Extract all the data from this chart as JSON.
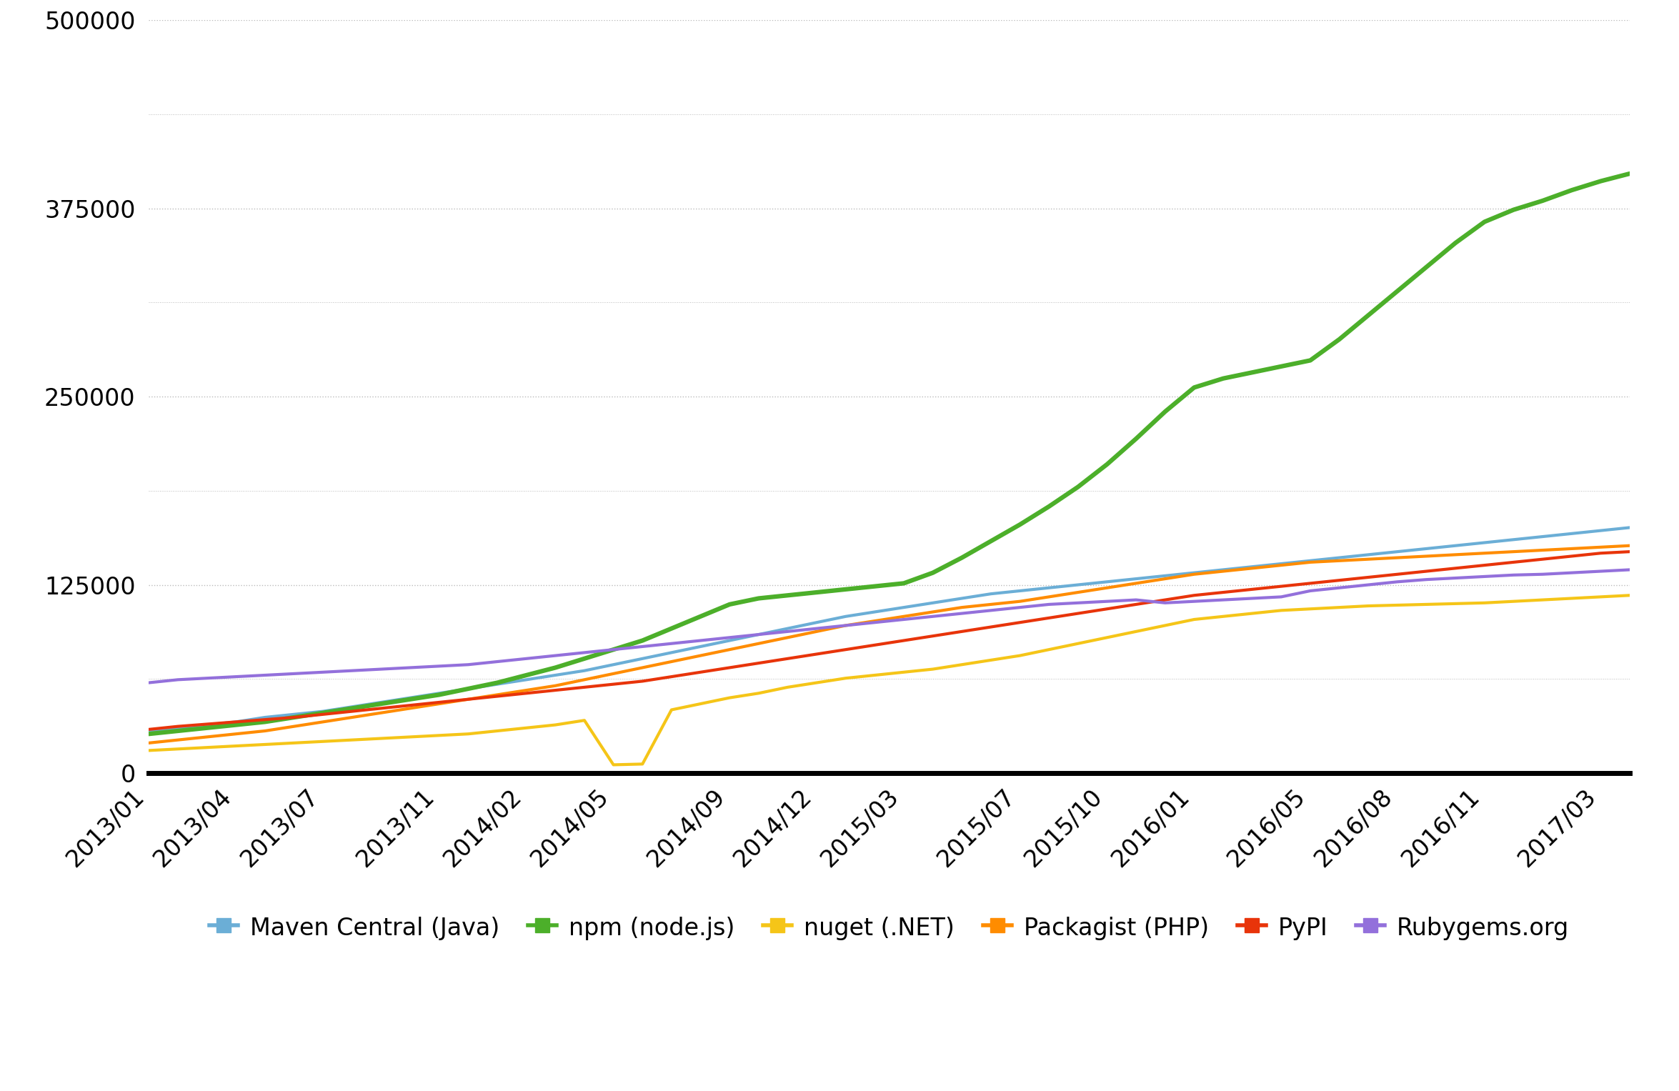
{
  "series": {
    "Maven Central (Java)": {
      "color": "#6baed6",
      "linewidth": 3.0,
      "data": {
        "2013/01": 28000,
        "2013/02": 30000,
        "2013/03": 32000,
        "2013/04": 34000,
        "2013/05": 37000,
        "2013/06": 39000,
        "2013/07": 41000,
        "2013/08": 44000,
        "2013/09": 47000,
        "2013/10": 50000,
        "2013/11": 53000,
        "2013/12": 56000,
        "2014/01": 59000,
        "2014/02": 62000,
        "2014/03": 65000,
        "2014/04": 68000,
        "2014/05": 72000,
        "2014/06": 76000,
        "2014/07": 80000,
        "2014/08": 84000,
        "2014/09": 88000,
        "2014/10": 92000,
        "2014/11": 96000,
        "2014/12": 100000,
        "2015/01": 104000,
        "2015/02": 107000,
        "2015/03": 110000,
        "2015/04": 113000,
        "2015/05": 116000,
        "2015/06": 119000,
        "2015/07": 121000,
        "2015/08": 123000,
        "2015/09": 125000,
        "2015/10": 127000,
        "2015/11": 129000,
        "2015/12": 131000,
        "2016/01": 133000,
        "2016/02": 135000,
        "2016/03": 137000,
        "2016/04": 139000,
        "2016/05": 141000,
        "2016/06": 143000,
        "2016/07": 145000,
        "2016/08": 147000,
        "2016/09": 149000,
        "2016/10": 151000,
        "2016/11": 153000,
        "2016/12": 155000,
        "2017/01": 157000,
        "2017/02": 159000,
        "2017/03": 161000,
        "2017/04": 163000
      }
    },
    "npm (node.js)": {
      "color": "#4caf2a",
      "linewidth": 4.5,
      "data": {
        "2013/01": 26000,
        "2013/02": 28000,
        "2013/03": 30000,
        "2013/04": 32000,
        "2013/05": 34000,
        "2013/06": 37000,
        "2013/07": 40000,
        "2013/08": 43000,
        "2013/09": 46000,
        "2013/10": 49000,
        "2013/11": 52000,
        "2013/12": 56000,
        "2014/01": 60000,
        "2014/02": 65000,
        "2014/03": 70000,
        "2014/04": 76000,
        "2014/05": 82000,
        "2014/06": 88000,
        "2014/07": 96000,
        "2014/08": 104000,
        "2014/09": 112000,
        "2014/10": 116000,
        "2014/11": 118000,
        "2014/12": 120000,
        "2015/01": 122000,
        "2015/02": 124000,
        "2015/03": 126000,
        "2015/04": 133000,
        "2015/05": 143000,
        "2015/06": 154000,
        "2015/07": 165000,
        "2015/08": 177000,
        "2015/09": 190000,
        "2015/10": 205000,
        "2015/11": 222000,
        "2015/12": 240000,
        "2016/01": 256000,
        "2016/02": 262000,
        "2016/03": 266000,
        "2016/04": 270000,
        "2016/05": 274000,
        "2016/06": 288000,
        "2016/07": 304000,
        "2016/08": 320000,
        "2016/09": 336000,
        "2016/10": 352000,
        "2016/11": 366000,
        "2016/12": 374000,
        "2017/01": 380000,
        "2017/02": 387000,
        "2017/03": 393000,
        "2017/04": 398000
      }
    },
    "nuget (.NET)": {
      "color": "#f5c518",
      "linewidth": 3.0,
      "data": {
        "2013/01": 15000,
        "2013/02": 16000,
        "2013/03": 17000,
        "2013/04": 18000,
        "2013/05": 19000,
        "2013/06": 20000,
        "2013/07": 21000,
        "2013/08": 22000,
        "2013/09": 23000,
        "2013/10": 24000,
        "2013/11": 25000,
        "2013/12": 26000,
        "2014/01": 28000,
        "2014/02": 30000,
        "2014/03": 32000,
        "2014/04": 35000,
        "2014/05": 5500,
        "2014/06": 6000,
        "2014/07": 42000,
        "2014/08": 46000,
        "2014/09": 50000,
        "2014/10": 53000,
        "2014/11": 57000,
        "2014/12": 60000,
        "2015/01": 63000,
        "2015/02": 65000,
        "2015/03": 67000,
        "2015/04": 69000,
        "2015/05": 72000,
        "2015/06": 75000,
        "2015/07": 78000,
        "2015/08": 82000,
        "2015/09": 86000,
        "2015/10": 90000,
        "2015/11": 94000,
        "2015/12": 98000,
        "2016/01": 102000,
        "2016/02": 104000,
        "2016/03": 106000,
        "2016/04": 108000,
        "2016/05": 109000,
        "2016/06": 110000,
        "2016/07": 111000,
        "2016/08": 111500,
        "2016/09": 112000,
        "2016/10": 112500,
        "2016/11": 113000,
        "2016/12": 114000,
        "2017/01": 115000,
        "2017/02": 116000,
        "2017/03": 117000,
        "2017/04": 118000
      }
    },
    "Packagist (PHP)": {
      "color": "#ff8c00",
      "linewidth": 3.0,
      "data": {
        "2013/01": 20000,
        "2013/02": 22000,
        "2013/03": 24000,
        "2013/04": 26000,
        "2013/05": 28000,
        "2013/06": 31000,
        "2013/07": 34000,
        "2013/08": 37000,
        "2013/09": 40000,
        "2013/10": 43000,
        "2013/11": 46000,
        "2013/12": 49000,
        "2014/01": 52000,
        "2014/02": 55000,
        "2014/03": 58000,
        "2014/04": 62000,
        "2014/05": 66000,
        "2014/06": 70000,
        "2014/07": 74000,
        "2014/08": 78000,
        "2014/09": 82000,
        "2014/10": 86000,
        "2014/11": 90000,
        "2014/12": 94000,
        "2015/01": 98000,
        "2015/02": 101000,
        "2015/03": 104000,
        "2015/04": 107000,
        "2015/05": 110000,
        "2015/06": 112000,
        "2015/07": 114000,
        "2015/08": 117000,
        "2015/09": 120000,
        "2015/10": 123000,
        "2015/11": 126000,
        "2015/12": 129000,
        "2016/01": 132000,
        "2016/02": 134000,
        "2016/03": 136000,
        "2016/04": 138000,
        "2016/05": 140000,
        "2016/06": 141000,
        "2016/07": 142000,
        "2016/08": 143000,
        "2016/09": 144000,
        "2016/10": 145000,
        "2016/11": 146000,
        "2016/12": 147000,
        "2017/01": 148000,
        "2017/02": 149000,
        "2017/03": 150000,
        "2017/04": 151000
      }
    },
    "PyPI": {
      "color": "#e8340a",
      "linewidth": 3.0,
      "data": {
        "2013/01": 29000,
        "2013/02": 31000,
        "2013/03": 32500,
        "2013/04": 34000,
        "2013/05": 35500,
        "2013/06": 37000,
        "2013/07": 39000,
        "2013/08": 41000,
        "2013/09": 43000,
        "2013/10": 45000,
        "2013/11": 47000,
        "2013/12": 49000,
        "2014/01": 51000,
        "2014/02": 53000,
        "2014/03": 55000,
        "2014/04": 57000,
        "2014/05": 59000,
        "2014/06": 61000,
        "2014/07": 64000,
        "2014/08": 67000,
        "2014/09": 70000,
        "2014/10": 73000,
        "2014/11": 76000,
        "2014/12": 79000,
        "2015/01": 82000,
        "2015/02": 85000,
        "2015/03": 88000,
        "2015/04": 91000,
        "2015/05": 94000,
        "2015/06": 97000,
        "2015/07": 100000,
        "2015/08": 103000,
        "2015/09": 106000,
        "2015/10": 109000,
        "2015/11": 112000,
        "2015/12": 115000,
        "2016/01": 118000,
        "2016/02": 120000,
        "2016/03": 122000,
        "2016/04": 124000,
        "2016/05": 126000,
        "2016/06": 128000,
        "2016/07": 130000,
        "2016/08": 132000,
        "2016/09": 134000,
        "2016/10": 136000,
        "2016/11": 138000,
        "2016/12": 140000,
        "2017/01": 142000,
        "2017/02": 144000,
        "2017/03": 146000,
        "2017/04": 147000
      }
    },
    "Rubygems.org": {
      "color": "#9370db",
      "linewidth": 3.0,
      "data": {
        "2013/01": 60000,
        "2013/02": 62000,
        "2013/03": 63000,
        "2013/04": 64000,
        "2013/05": 65000,
        "2013/06": 66000,
        "2013/07": 67000,
        "2013/08": 68000,
        "2013/09": 69000,
        "2013/10": 70000,
        "2013/11": 71000,
        "2013/12": 72000,
        "2014/01": 74000,
        "2014/02": 76000,
        "2014/03": 78000,
        "2014/04": 80000,
        "2014/05": 82000,
        "2014/06": 84000,
        "2014/07": 86000,
        "2014/08": 88000,
        "2014/09": 90000,
        "2014/10": 92000,
        "2014/11": 94000,
        "2014/12": 96000,
        "2015/01": 98000,
        "2015/02": 100000,
        "2015/03": 102000,
        "2015/04": 104000,
        "2015/05": 106000,
        "2015/06": 108000,
        "2015/07": 110000,
        "2015/08": 112000,
        "2015/09": 113000,
        "2015/10": 114000,
        "2015/11": 115000,
        "2015/12": 113000,
        "2016/01": 114000,
        "2016/02": 115000,
        "2016/03": 116000,
        "2016/04": 117000,
        "2016/05": 121000,
        "2016/06": 123000,
        "2016/07": 125000,
        "2016/08": 127000,
        "2016/09": 128500,
        "2016/10": 129500,
        "2016/11": 130500,
        "2016/12": 131500,
        "2017/01": 132000,
        "2017/02": 133000,
        "2017/03": 134000,
        "2017/04": 135000
      }
    }
  },
  "x_tick_labels": [
    "2013/01",
    "2013/04",
    "2013/07",
    "2013/11",
    "2014/02",
    "2014/05",
    "2014/09",
    "2014/12",
    "2015/03",
    "2015/07",
    "2015/10",
    "2016/01",
    "2016/05",
    "2016/08",
    "2016/11",
    "2017/03"
  ],
  "ylim": [
    0,
    500000
  ],
  "yticks": [
    0,
    125000,
    250000,
    375000,
    500000
  ],
  "ytick_labels": [
    "0",
    "125000",
    "250000",
    "375000",
    "500000"
  ],
  "extra_gridlines": [
    62500,
    187500,
    312500,
    437500
  ],
  "background_color": "#ffffff",
  "grid_color": "#bbbbbb",
  "legend_order": [
    "Maven Central (Java)",
    "npm (node.js)",
    "nuget (.NET)",
    "Packagist (PHP)",
    "PyPI",
    "Rubygems.org"
  ]
}
